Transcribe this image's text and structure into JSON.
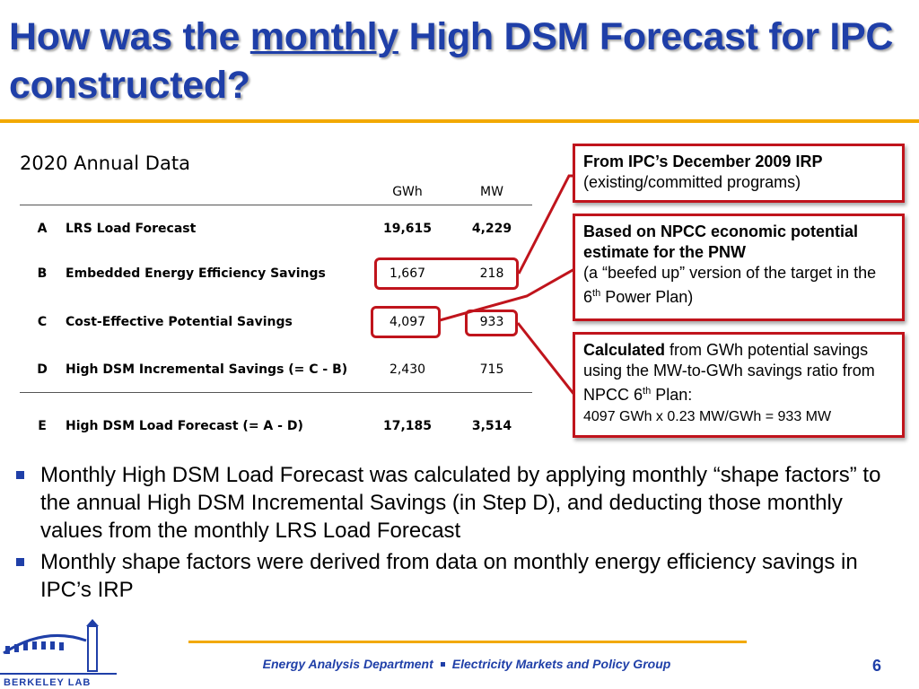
{
  "title": {
    "part1": "How was the ",
    "emphasis": "monthly",
    "part2": " High DSM Forecast for IPC constructed?"
  },
  "table": {
    "title": "2020 Annual Data",
    "columns": [
      "GWh",
      "MW"
    ],
    "rows": [
      {
        "letter": "A",
        "label": "LRS Load Forecast",
        "gwh": "19,615",
        "mw": "4,229"
      },
      {
        "letter": "B",
        "label": "Embedded Energy Efficiency Savings",
        "gwh": "1,667",
        "mw": "218"
      },
      {
        "letter": "C",
        "label": "Cost-Effective Potential Savings",
        "gwh": "4,097",
        "mw": "933"
      },
      {
        "letter": "D",
        "label": "High DSM Incremental Savings (= C - B)",
        "gwh": "2,430",
        "mw": "715"
      },
      {
        "letter": "E",
        "label": "High DSM Load Forecast (= A - D)",
        "gwh": "17,185",
        "mw": "3,514"
      }
    ]
  },
  "callouts": {
    "irp": {
      "bold": "From IPC’s December 2009 IRP",
      "text": "(existing/committed programs)"
    },
    "npcc": {
      "bold": "Based on NPCC economic potential estimate for the PNW",
      "text1": "(a “beefed up” version of the target in the 6",
      "sup": "th",
      "text2": " Power Plan)"
    },
    "calc": {
      "bold": "Calculated",
      "text1": " from GWh potential savings using the MW-to-GWh savings ratio from NPCC 6",
      "sup": "th",
      "text2": " Plan:",
      "formula": "4097 GWh x 0.23 MW/GWh = 933 MW"
    }
  },
  "bullets": [
    "Monthly High DSM Load Forecast was calculated by applying monthly “shape factors” to the annual High DSM Incremental Savings (in Step D), and deducting those monthly values from the monthly LRS Load Forecast",
    "Monthly shape factors were derived from data on monthly energy efficiency savings in IPC’s IRP"
  ],
  "footer": {
    "left": "Energy Analysis Department",
    "right": "Electricity Markets and Policy Group",
    "page": "6"
  },
  "logo": {
    "text": "BERKELEY LAB"
  },
  "colors": {
    "title_blue": "#1f3fa8",
    "accent_gold": "#f2a900",
    "highlight_red": "#c0141c"
  }
}
